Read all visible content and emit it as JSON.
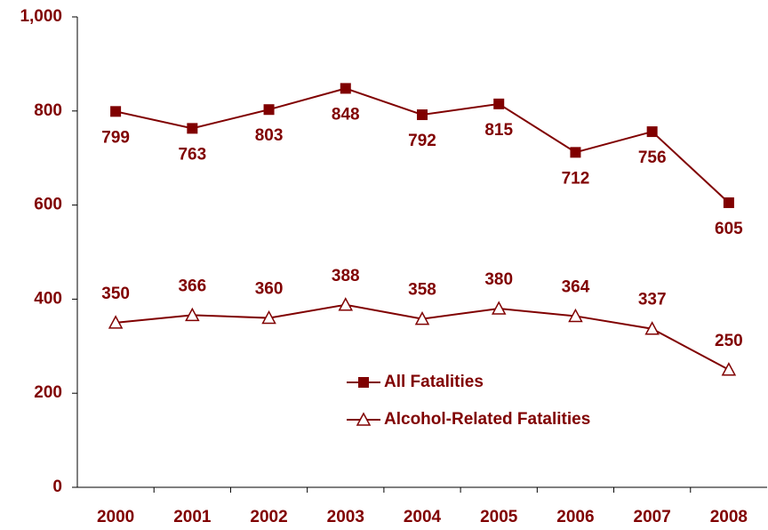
{
  "chart_data": {
    "type": "line",
    "categories": [
      "2000",
      "2001",
      "2002",
      "2003",
      "2004",
      "2005",
      "2006",
      "2007",
      "2008"
    ],
    "series": [
      {
        "name": "All Fatalities",
        "color": "#800000",
        "marker": "square",
        "values": [
          799,
          763,
          803,
          848,
          792,
          815,
          712,
          756,
          605
        ]
      },
      {
        "name": "Alcohol-Related Fatalities",
        "color": "#800000",
        "marker": "triangle-open",
        "values": [
          350,
          366,
          360,
          388,
          358,
          380,
          364,
          337,
          250
        ]
      }
    ],
    "ylim": [
      0,
      1000
    ],
    "yticks": [
      0,
      200,
      400,
      600,
      800,
      {
        "value": 1000,
        "label": "1,000"
      }
    ]
  }
}
